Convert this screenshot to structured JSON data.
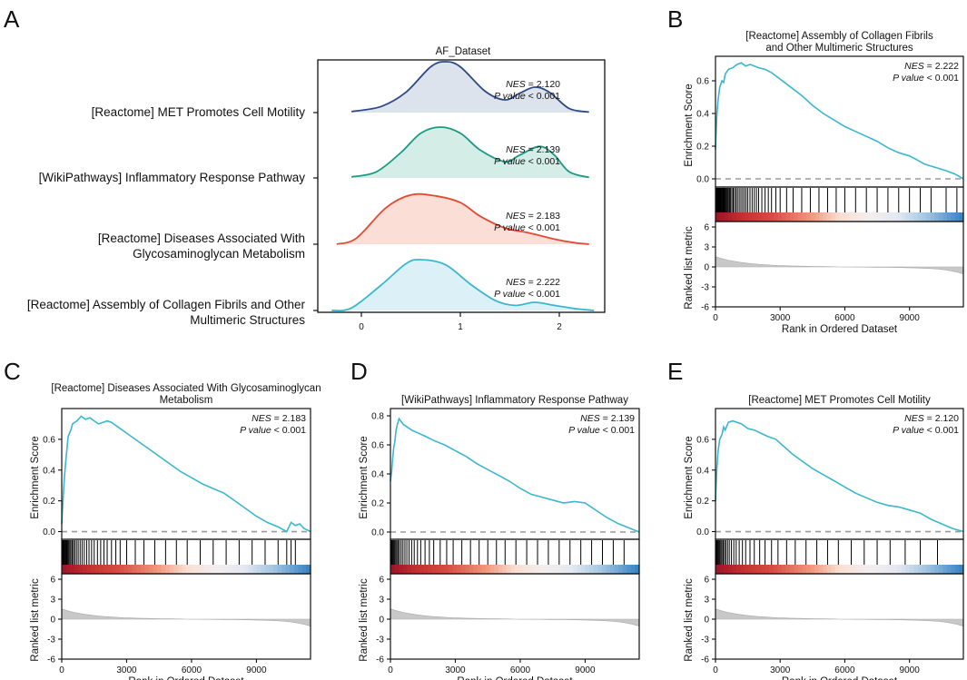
{
  "panel_letters": [
    "A",
    "B",
    "C",
    "D",
    "E"
  ],
  "colors": {
    "es_line": "#3ab7cf",
    "zero_line": "#9a9a9a",
    "metric_fill": "#c8c8c8",
    "heat_red": "#b2182b",
    "heat_mid": "#f7e6e0",
    "heat_white": "#f4f4f4",
    "heat_blue": "#4a93c8"
  },
  "chart_data": [
    {
      "id": "A",
      "type": "ridgeline",
      "title": "AF_Dataset",
      "xticks": [
        0,
        1,
        2
      ],
      "xlim": [
        -0.4,
        2.8
      ],
      "ridges": [
        {
          "label_lines": [
            "[Reactome] MET Promotes Cell Motility"
          ],
          "nes": "2.120",
          "p": "< 0.001",
          "line_color": "#2e4a86",
          "fill_color": "#dde3ec",
          "range": [
            -0.1,
            2.3
          ],
          "curve": [
            [
              -0.1,
              0.02
            ],
            [
              0.2,
              0.12
            ],
            [
              0.45,
              0.4
            ],
            [
              0.7,
              0.9
            ],
            [
              0.85,
              1.0
            ],
            [
              1.0,
              0.9
            ],
            [
              1.25,
              0.42
            ],
            [
              1.45,
              0.25
            ],
            [
              1.6,
              0.38
            ],
            [
              1.75,
              0.5
            ],
            [
              1.9,
              0.4
            ],
            [
              2.1,
              0.08
            ],
            [
              2.3,
              0.01
            ]
          ]
        },
        {
          "label_lines": [
            "[WikiPathways] Inflammatory Response Pathway"
          ],
          "nes": "2.139",
          "p": "< 0.001",
          "line_color": "#1a9b82",
          "fill_color": "#d4ede7",
          "range": [
            -0.1,
            2.3
          ],
          "curve": [
            [
              -0.1,
              0.02
            ],
            [
              0.15,
              0.12
            ],
            [
              0.4,
              0.5
            ],
            [
              0.6,
              0.88
            ],
            [
              0.8,
              1.0
            ],
            [
              1.0,
              0.88
            ],
            [
              1.2,
              0.55
            ],
            [
              1.45,
              0.32
            ],
            [
              1.6,
              0.45
            ],
            [
              1.8,
              0.62
            ],
            [
              1.95,
              0.45
            ],
            [
              2.1,
              0.12
            ],
            [
              2.3,
              0.01
            ]
          ]
        },
        {
          "label_lines": [
            "[Reactome] Diseases Associated With",
            "Glycosaminoglycan Metabolism"
          ],
          "nes": "2.183",
          "p": "< 0.001",
          "line_color": "#e24a33",
          "fill_color": "#fbded6",
          "range": [
            -0.25,
            2.3
          ],
          "curve": [
            [
              -0.25,
              0.0
            ],
            [
              -0.05,
              0.12
            ],
            [
              0.25,
              0.72
            ],
            [
              0.5,
              0.97
            ],
            [
              0.75,
              0.95
            ],
            [
              1.0,
              0.82
            ],
            [
              1.2,
              0.55
            ],
            [
              1.45,
              0.32
            ],
            [
              1.7,
              0.22
            ],
            [
              1.95,
              0.1
            ],
            [
              2.15,
              0.03
            ],
            [
              2.3,
              0.0
            ]
          ]
        },
        {
          "label_lines": [
            "[Reactome] Assembly of Collagen Fibrils and Other",
            "Multimeric Structures"
          ],
          "nes": "2.222",
          "p": "< 0.001",
          "line_color": "#3ab7cf",
          "fill_color": "#dbf1f7",
          "range": [
            -0.3,
            2.35
          ],
          "curve": [
            [
              -0.3,
              0.0
            ],
            [
              -0.1,
              0.05
            ],
            [
              0.2,
              0.5
            ],
            [
              0.45,
              0.92
            ],
            [
              0.6,
              1.0
            ],
            [
              0.85,
              0.9
            ],
            [
              1.1,
              0.52
            ],
            [
              1.35,
              0.2
            ],
            [
              1.55,
              0.1
            ],
            [
              1.75,
              0.16
            ],
            [
              1.95,
              0.1
            ],
            [
              2.15,
              0.04
            ],
            [
              2.35,
              0.0
            ]
          ]
        }
      ]
    },
    {
      "id": "B",
      "type": "line",
      "title_lines": [
        "[Reactome] Assembly of Collagen Fibrils",
        "and Other Multimeric Structures"
      ],
      "nes": "2.222",
      "p": "< 0.001",
      "ylabel": "Enrichment Score",
      "metric_ylabel": "Ranked list metric",
      "xlabel": "Rank in Ordered Dataset",
      "xmax": 11500,
      "xticks": [
        0,
        3000,
        6000,
        9000
      ],
      "ylim": [
        -0.05,
        0.75
      ],
      "yticks": [
        0.0,
        0.2,
        0.4,
        0.6
      ],
      "metric_ticks": [
        6,
        3,
        0,
        -3,
        -6
      ],
      "es_curve": [
        [
          0,
          0.18
        ],
        [
          60,
          0.38
        ],
        [
          120,
          0.48
        ],
        [
          200,
          0.56
        ],
        [
          300,
          0.6
        ],
        [
          380,
          0.59
        ],
        [
          450,
          0.64
        ],
        [
          600,
          0.67
        ],
        [
          800,
          0.68
        ],
        [
          1000,
          0.7
        ],
        [
          1200,
          0.71
        ],
        [
          1400,
          0.69
        ],
        [
          1600,
          0.7
        ],
        [
          1800,
          0.69
        ],
        [
          2000,
          0.68
        ],
        [
          2300,
          0.67
        ],
        [
          2600,
          0.65
        ],
        [
          3000,
          0.61
        ],
        [
          3500,
          0.56
        ],
        [
          4000,
          0.51
        ],
        [
          4500,
          0.45
        ],
        [
          5000,
          0.4
        ],
        [
          5500,
          0.36
        ],
        [
          6000,
          0.32
        ],
        [
          6500,
          0.29
        ],
        [
          7000,
          0.26
        ],
        [
          7500,
          0.23
        ],
        [
          8000,
          0.19
        ],
        [
          8500,
          0.16
        ],
        [
          9000,
          0.14
        ],
        [
          9300,
          0.12
        ],
        [
          9700,
          0.09
        ],
        [
          10200,
          0.07
        ],
        [
          10700,
          0.05
        ],
        [
          11100,
          0.03
        ],
        [
          11500,
          0.0
        ]
      ],
      "hits": [
        20,
        40,
        60,
        80,
        100,
        130,
        160,
        190,
        220,
        250,
        280,
        310,
        340,
        370,
        400,
        440,
        480,
        520,
        560,
        600,
        650,
        700,
        760,
        820,
        880,
        950,
        1020,
        1100,
        1180,
        1260,
        1340,
        1420,
        1500,
        1600,
        1700,
        1800,
        1900,
        2000,
        2150,
        2300,
        2450,
        2600,
        2800,
        3000,
        3300,
        3600,
        4000,
        4400,
        4800,
        5200,
        5600,
        6000,
        6500,
        7000,
        7500,
        8000,
        8500,
        9000,
        9500,
        10000,
        10700,
        11200
      ]
    },
    {
      "id": "C",
      "type": "line",
      "title_lines": [
        "[Reactome] Diseases Associated With Glycosaminoglycan",
        "Metabolism"
      ],
      "nes": "2.183",
      "p": "< 0.001",
      "ylabel": "Enrichment Score",
      "metric_ylabel": "Ranked list metric",
      "xlabel": "Rank in Ordered Dataset",
      "xmax": 11500,
      "xticks": [
        0,
        3000,
        6000,
        9000
      ],
      "ylim": [
        -0.05,
        0.8
      ],
      "yticks": [
        0.0,
        0.2,
        0.4,
        0.6
      ],
      "metric_ticks": [
        6,
        3,
        0,
        -3,
        -6
      ],
      "es_curve": [
        [
          0,
          0.05
        ],
        [
          60,
          0.2
        ],
        [
          120,
          0.35
        ],
        [
          200,
          0.48
        ],
        [
          300,
          0.62
        ],
        [
          420,
          0.66
        ],
        [
          500,
          0.7
        ],
        [
          700,
          0.72
        ],
        [
          900,
          0.75
        ],
        [
          1100,
          0.73
        ],
        [
          1300,
          0.74
        ],
        [
          1500,
          0.72
        ],
        [
          1700,
          0.7
        ],
        [
          1900,
          0.71
        ],
        [
          2100,
          0.72
        ],
        [
          2300,
          0.71
        ],
        [
          2600,
          0.68
        ],
        [
          3000,
          0.64
        ],
        [
          3500,
          0.59
        ],
        [
          4000,
          0.54
        ],
        [
          4500,
          0.49
        ],
        [
          5000,
          0.44
        ],
        [
          5500,
          0.39
        ],
        [
          6000,
          0.35
        ],
        [
          6500,
          0.31
        ],
        [
          7000,
          0.28
        ],
        [
          7500,
          0.25
        ],
        [
          8000,
          0.2
        ],
        [
          8500,
          0.15
        ],
        [
          9000,
          0.1
        ],
        [
          9500,
          0.06
        ],
        [
          10000,
          0.03
        ],
        [
          10400,
          0.0
        ],
        [
          10600,
          0.06
        ],
        [
          10800,
          0.04
        ],
        [
          11000,
          0.05
        ],
        [
          11200,
          0.02
        ],
        [
          11500,
          0.0
        ]
      ],
      "hits": [
        20,
        50,
        80,
        110,
        150,
        190,
        230,
        270,
        320,
        370,
        420,
        480,
        540,
        600,
        680,
        760,
        850,
        940,
        1040,
        1150,
        1260,
        1380,
        1500,
        1650,
        1800,
        1950,
        2100,
        2300,
        2500,
        2700,
        3000,
        3400,
        3800,
        4300,
        4800,
        5300,
        5800,
        6400,
        7000,
        7600,
        8200,
        8800,
        9400,
        10000,
        10400,
        10600,
        10800
      ]
    },
    {
      "id": "D",
      "type": "line",
      "title_lines": [
        "[WikiPathways] Inflammatory Response Pathway"
      ],
      "nes": "2.139",
      "p": "< 0.001",
      "ylabel": "Enrichment Score",
      "metric_ylabel": "Ranked list metric",
      "xlabel": "Rank in Ordered Dataset",
      "xmax": 11500,
      "xticks": [
        0,
        3000,
        6000,
        9000
      ],
      "ylim": [
        -0.05,
        0.85
      ],
      "yticks": [
        0.0,
        0.2,
        0.4,
        0.6,
        0.8
      ],
      "metric_ticks": [
        6,
        3,
        0,
        -3,
        -6
      ],
      "es_curve": [
        [
          0,
          0.35
        ],
        [
          60,
          0.42
        ],
        [
          100,
          0.5
        ],
        [
          150,
          0.58
        ],
        [
          200,
          0.62
        ],
        [
          260,
          0.7
        ],
        [
          320,
          0.74
        ],
        [
          400,
          0.78
        ],
        [
          500,
          0.76
        ],
        [
          600,
          0.74
        ],
        [
          800,
          0.72
        ],
        [
          1000,
          0.7
        ],
        [
          1300,
          0.68
        ],
        [
          1600,
          0.66
        ],
        [
          2000,
          0.63
        ],
        [
          2500,
          0.6
        ],
        [
          3000,
          0.56
        ],
        [
          3500,
          0.52
        ],
        [
          4000,
          0.47
        ],
        [
          4500,
          0.43
        ],
        [
          5000,
          0.39
        ],
        [
          5500,
          0.35
        ],
        [
          6000,
          0.3
        ],
        [
          6500,
          0.26
        ],
        [
          7000,
          0.24
        ],
        [
          7500,
          0.22
        ],
        [
          8000,
          0.2
        ],
        [
          8500,
          0.21
        ],
        [
          9000,
          0.2
        ],
        [
          9500,
          0.15
        ],
        [
          10000,
          0.1
        ],
        [
          10500,
          0.06
        ],
        [
          11000,
          0.03
        ],
        [
          11500,
          0.0
        ]
      ],
      "hits": [
        20,
        50,
        80,
        120,
        160,
        200,
        250,
        300,
        360,
        420,
        500,
        580,
        670,
        760,
        860,
        980,
        1100,
        1250,
        1400,
        1600,
        1800,
        2000,
        2300,
        2600,
        2900,
        3300,
        3700,
        4100,
        4500,
        4900,
        5300,
        5800,
        6300,
        6800,
        7300,
        7800,
        8300,
        8800,
        9300,
        9800,
        10300,
        10800
      ]
    },
    {
      "id": "E",
      "type": "line",
      "title_lines": [
        "[Reactome] MET Promotes Cell Motility"
      ],
      "nes": "2.120",
      "p": "< 0.001",
      "ylabel": "Enrichment Score",
      "metric_ylabel": "Ranked list metric",
      "xlabel": "Rank in Ordered Dataset",
      "xmax": 11500,
      "xticks": [
        0,
        3000,
        6000,
        9000
      ],
      "ylim": [
        -0.05,
        0.8
      ],
      "yticks": [
        0.0,
        0.2,
        0.4,
        0.6
      ],
      "metric_ticks": [
        6,
        3,
        0,
        -3,
        -6
      ],
      "es_curve": [
        [
          0,
          0.2
        ],
        [
          60,
          0.4
        ],
        [
          120,
          0.52
        ],
        [
          200,
          0.6
        ],
        [
          300,
          0.63
        ],
        [
          380,
          0.68
        ],
        [
          450,
          0.66
        ],
        [
          600,
          0.71
        ],
        [
          800,
          0.72
        ],
        [
          1000,
          0.71
        ],
        [
          1200,
          0.7
        ],
        [
          1500,
          0.67
        ],
        [
          1800,
          0.66
        ],
        [
          2100,
          0.64
        ],
        [
          2400,
          0.62
        ],
        [
          2800,
          0.6
        ],
        [
          3200,
          0.55
        ],
        [
          3600,
          0.5
        ],
        [
          4000,
          0.46
        ],
        [
          4500,
          0.41
        ],
        [
          5000,
          0.37
        ],
        [
          5500,
          0.33
        ],
        [
          6000,
          0.29
        ],
        [
          6500,
          0.25
        ],
        [
          7000,
          0.22
        ],
        [
          7500,
          0.19
        ],
        [
          8000,
          0.17
        ],
        [
          8500,
          0.16
        ],
        [
          9000,
          0.14
        ],
        [
          9500,
          0.12
        ],
        [
          10000,
          0.08
        ],
        [
          10500,
          0.05
        ],
        [
          11000,
          0.02
        ],
        [
          11500,
          0.0
        ]
      ],
      "hits": [
        20,
        50,
        80,
        120,
        160,
        200,
        250,
        300,
        360,
        420,
        480,
        560,
        640,
        740,
        850,
        960,
        1100,
        1250,
        1400,
        1600,
        1800,
        2050,
        2300,
        2600,
        2900,
        3300,
        3700,
        4200,
        4700,
        5200,
        5700,
        6300,
        6900,
        7500,
        8100,
        8800,
        9500,
        10300
      ]
    }
  ]
}
